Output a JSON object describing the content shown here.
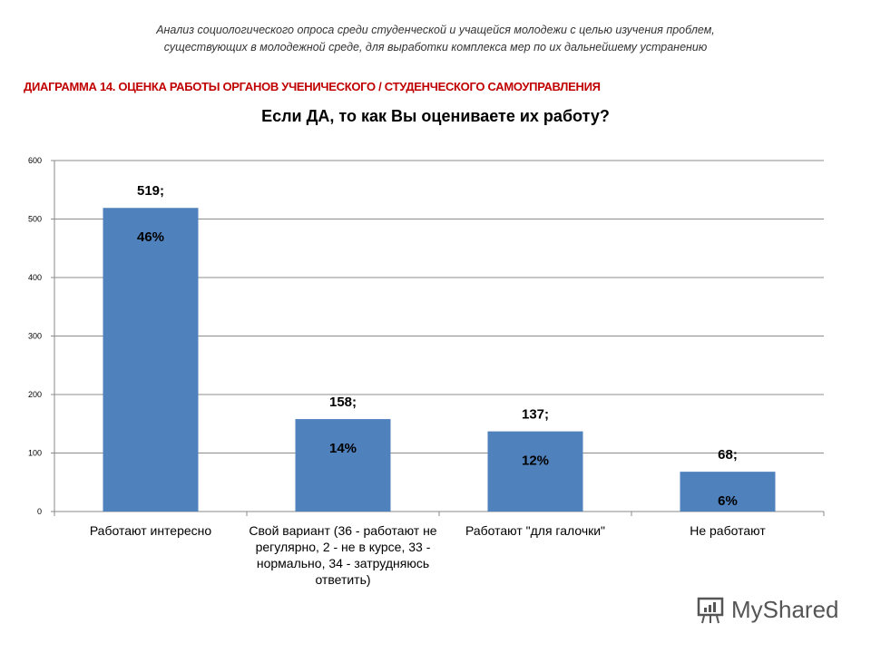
{
  "header": {
    "subtitle_line1": "Анализ социологического опроса среди студенческой и учащейся молодежи с целью изучения проблем,",
    "subtitle_line2": "существующих в молодежной среде, для выработки комплекса мер по их дальнейшему  устранению",
    "heading": "ДИАГРАММА 14. ОЦЕНКА РАБОТЫ ОРГАНОВ УЧЕНИЧЕСКОГО / СТУДЕНЧЕСКОГО САМОУПРАВЛЕНИЯ"
  },
  "chart_data": {
    "type": "bar",
    "title": "Если ДА, то как Вы оцениваете их работу?",
    "categories": [
      "Работают интересно",
      "Свой вариант (36 - работают не регулярно, 2 - не в курсе, 33 - нормально, 34 - затрудняюсь ответить)",
      "Работают \"для галочки\"",
      "Не работают"
    ],
    "values": [
      519,
      158,
      137,
      68
    ],
    "value_labels": [
      "519;",
      "158;",
      "137;",
      "68;"
    ],
    "percent_labels": [
      "46%",
      "14%",
      "12%",
      "6%"
    ],
    "ylim": [
      0,
      600
    ],
    "yticks": [
      "0",
      "100",
      "200",
      "300",
      "400",
      "500",
      "600"
    ],
    "grid": true,
    "bar_color": "#4f81bd",
    "xlabel": "",
    "ylabel": ""
  },
  "watermark": {
    "text": "MyShared"
  }
}
